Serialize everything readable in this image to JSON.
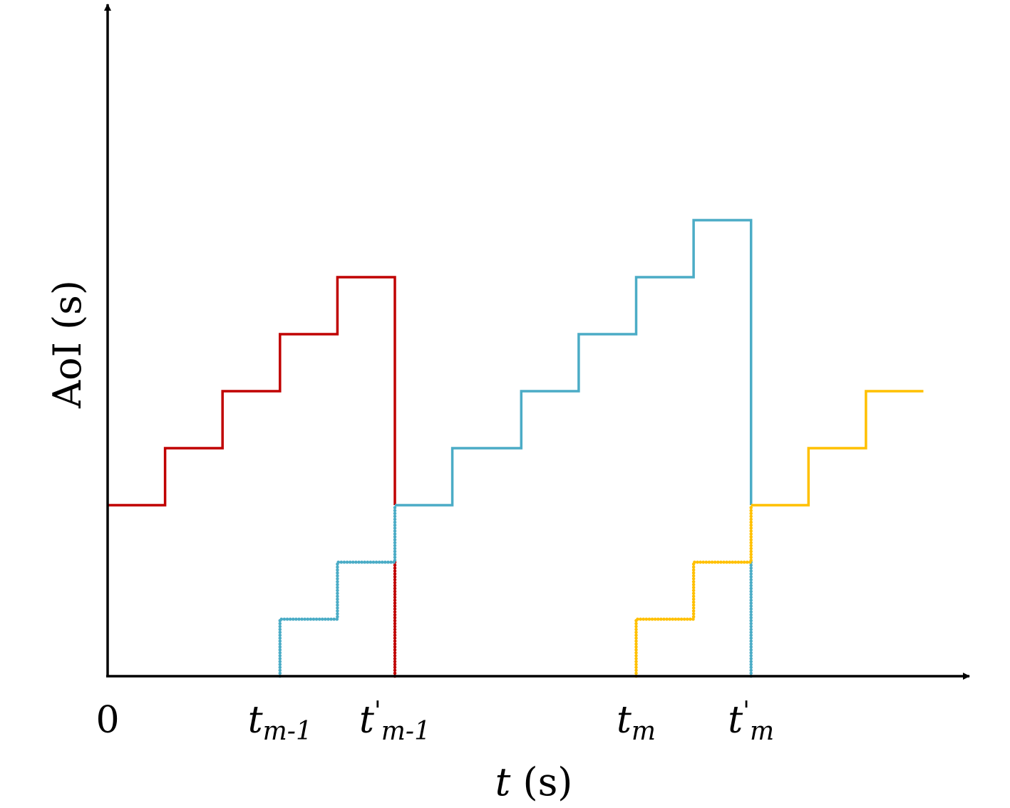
{
  "chart_data": {
    "type": "line",
    "step": true,
    "xlabel": {
      "var": "t",
      "unit": " (s)"
    },
    "ylabel": "AoI (s)",
    "x_ticks": [
      {
        "base": "0",
        "prime": "",
        "sub": ""
      },
      {
        "base": "t",
        "prime": "",
        "sub": "m-1"
      },
      {
        "base": "t",
        "prime": "'",
        "sub": "m-1"
      },
      {
        "base": "t",
        "prime": "",
        "sub": "m"
      },
      {
        "base": "t",
        "prime": "'",
        "sub": "m"
      }
    ],
    "x_tick_positions": [
      0,
      3,
      5,
      9.2,
      11.2
    ],
    "xlim": [
      0,
      15
    ],
    "ylim": [
      0,
      11.8
    ],
    "grid": false,
    "colors": {
      "red": "#C00000",
      "blue": "#4BACC6",
      "yellow": "#FFC000"
    },
    "series": [
      {
        "color": "red",
        "dash": "solid",
        "points": [
          [
            0,
            3
          ],
          [
            1,
            3
          ],
          [
            1,
            4
          ],
          [
            2,
            4
          ],
          [
            2,
            5
          ],
          [
            3,
            5
          ],
          [
            3,
            6
          ],
          [
            4,
            6
          ],
          [
            4,
            7
          ],
          [
            5,
            7
          ],
          [
            5,
            3
          ]
        ]
      },
      {
        "color": "red",
        "dash": "dotted",
        "points": [
          [
            5,
            2
          ],
          [
            5,
            0
          ]
        ]
      },
      {
        "color": "blue",
        "dash": "dotted",
        "points": [
          [
            3,
            0
          ],
          [
            3,
            1
          ],
          [
            4,
            1
          ],
          [
            4,
            2
          ],
          [
            5,
            2
          ],
          [
            5,
            3
          ]
        ]
      },
      {
        "color": "blue",
        "dash": "solid",
        "points": [
          [
            5,
            3
          ],
          [
            6,
            3
          ],
          [
            6,
            4
          ],
          [
            7.2,
            4
          ],
          [
            7.2,
            5
          ],
          [
            8.2,
            5
          ],
          [
            8.2,
            6
          ],
          [
            9.2,
            6
          ],
          [
            9.2,
            7
          ],
          [
            10.2,
            7
          ],
          [
            10.2,
            8
          ],
          [
            11.2,
            8
          ],
          [
            11.2,
            3
          ]
        ]
      },
      {
        "color": "blue",
        "dash": "dotted",
        "points": [
          [
            11.2,
            2
          ],
          [
            11.2,
            0
          ]
        ]
      },
      {
        "color": "yellow",
        "dash": "dotted",
        "points": [
          [
            9.2,
            0
          ],
          [
            9.2,
            1
          ],
          [
            10.2,
            1
          ],
          [
            10.2,
            2
          ],
          [
            11.2,
            2
          ],
          [
            11.2,
            3
          ]
        ]
      },
      {
        "color": "yellow",
        "dash": "solid",
        "points": [
          [
            11.2,
            3
          ],
          [
            12.2,
            3
          ],
          [
            12.2,
            4
          ],
          [
            13.2,
            4
          ],
          [
            13.2,
            5
          ],
          [
            14.2,
            5
          ]
        ]
      }
    ]
  }
}
